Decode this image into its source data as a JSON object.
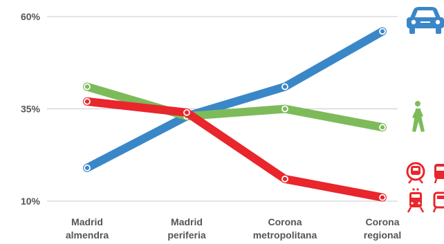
{
  "chart_data": {
    "type": "line",
    "categories": [
      "Madrid almendra",
      "Madrid periferia",
      "Corona metropolitana",
      "Corona regional"
    ],
    "category_lines": [
      [
        "Madrid",
        "almendra"
      ],
      [
        "Madrid",
        "periferia"
      ],
      [
        "Corona",
        "metropolitana"
      ],
      [
        "Corona",
        "regional"
      ]
    ],
    "y_ticks": [
      "60%",
      "35%",
      "10%"
    ],
    "ylim": [
      10,
      60
    ],
    "grid": true,
    "series": [
      {
        "icon": "car-icon",
        "color": "#3a87c8",
        "values": [
          19,
          33,
          41,
          56
        ]
      },
      {
        "icon": "walking-person-icon",
        "color": "#7dbb5a",
        "values": [
          41,
          33,
          35,
          30
        ]
      },
      {
        "icon": "public-transport-icon",
        "color": "#e8262b",
        "values": [
          37,
          34,
          16,
          11
        ]
      }
    ]
  }
}
